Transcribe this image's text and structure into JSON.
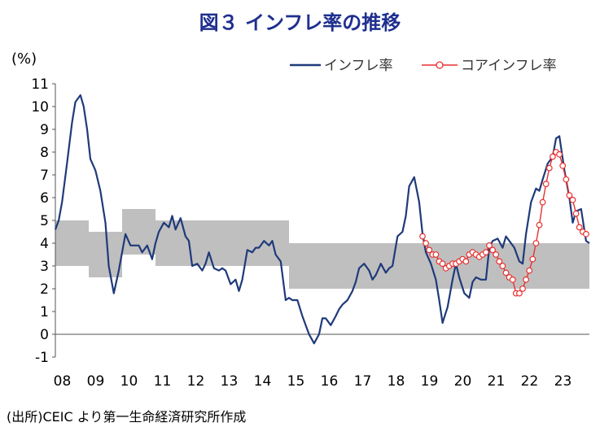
{
  "title": "図３ インフレ率の推移",
  "unit": "(%)",
  "source": "(出所)CEIC より第一生命経済研究所作成",
  "colors": {
    "inflation": "#1f3a7a",
    "core": "#e8312f",
    "band": "#bfbfbf"
  },
  "chart_data": {
    "type": "line",
    "title": "図３ インフレ率の推移",
    "ylabel": "(%)",
    "ylim": [
      -1,
      11
    ],
    "yticks": [
      "11",
      "10",
      "9",
      "8",
      "7",
      "6",
      "5",
      "4",
      "3",
      "2",
      "1",
      "0",
      "-1"
    ],
    "xlim": [
      2008,
      2024
    ],
    "xticks": [
      "08",
      "09",
      "10",
      "11",
      "12",
      "13",
      "14",
      "15",
      "16",
      "17",
      "18",
      "19",
      "20",
      "21",
      "22",
      "23"
    ],
    "legend": {
      "position": "top-right",
      "entries": [
        "インフレ率",
        "コアインフレ率"
      ]
    },
    "target_band": [
      {
        "x": 2008.0,
        "low": 3.0,
        "high": 5.0
      },
      {
        "x": 2009.0,
        "low": 3.0,
        "high": 5.0
      },
      {
        "x": 2009.0,
        "low": 2.5,
        "high": 4.5
      },
      {
        "x": 2010.0,
        "low": 2.5,
        "high": 4.5
      },
      {
        "x": 2010.0,
        "low": 3.5,
        "high": 5.5
      },
      {
        "x": 2011.0,
        "low": 3.5,
        "high": 5.5
      },
      {
        "x": 2011.0,
        "low": 3.0,
        "high": 5.0
      },
      {
        "x": 2015.0,
        "low": 3.0,
        "high": 5.0
      },
      {
        "x": 2015.0,
        "low": 2.0,
        "high": 4.0
      },
      {
        "x": 2024.0,
        "low": 2.0,
        "high": 4.0
      }
    ],
    "series": [
      {
        "name": "インフレ率",
        "style": "line",
        "x": [
          2008.0,
          2008.1,
          2008.2,
          2008.35,
          2008.5,
          2008.6,
          2008.75,
          2008.85,
          2008.95,
          2009.05,
          2009.2,
          2009.35,
          2009.5,
          2009.6,
          2009.75,
          2009.9,
          2010.0,
          2010.1,
          2010.25,
          2010.4,
          2010.5,
          2010.6,
          2010.75,
          2010.9,
          2011.0,
          2011.1,
          2011.25,
          2011.4,
          2011.5,
          2011.6,
          2011.75,
          2011.9,
          2012.0,
          2012.1,
          2012.25,
          2012.4,
          2012.5,
          2012.6,
          2012.75,
          2012.9,
          2013.0,
          2013.1,
          2013.25,
          2013.4,
          2013.5,
          2013.6,
          2013.75,
          2013.9,
          2014.0,
          2014.1,
          2014.25,
          2014.4,
          2014.5,
          2014.6,
          2014.75,
          2014.9,
          2015.0,
          2015.1,
          2015.25,
          2015.4,
          2015.5,
          2015.6,
          2015.75,
          2015.9,
          2016.0,
          2016.1,
          2016.25,
          2016.4,
          2016.5,
          2016.6,
          2016.75,
          2016.9,
          2017.0,
          2017.1,
          2017.25,
          2017.4,
          2017.5,
          2017.6,
          2017.75,
          2017.9,
          2018.0,
          2018.1,
          2018.25,
          2018.4,
          2018.5,
          2018.6,
          2018.75,
          2018.9,
          2019.0,
          2019.1,
          2019.25,
          2019.4,
          2019.5,
          2019.6,
          2019.75,
          2019.9,
          2020.0,
          2020.1,
          2020.25,
          2020.4,
          2020.5,
          2020.6,
          2020.75,
          2020.9,
          2021.0,
          2021.1,
          2021.25,
          2021.4,
          2021.5,
          2021.6,
          2021.75,
          2021.9,
          2022.0,
          2022.1,
          2022.25,
          2022.4,
          2022.5,
          2022.6,
          2022.75,
          2022.9,
          2023.0,
          2023.1,
          2023.25,
          2023.4,
          2023.5,
          2023.6,
          2023.75,
          2023.9,
          2024.0
        ],
        "values": [
          4.6,
          5.0,
          5.8,
          7.5,
          9.3,
          10.2,
          10.5,
          10.0,
          9.0,
          7.7,
          7.2,
          6.3,
          4.9,
          3.0,
          1.8,
          2.8,
          3.6,
          4.4,
          3.9,
          3.9,
          3.9,
          3.6,
          3.9,
          3.3,
          4.0,
          4.5,
          4.9,
          4.7,
          5.2,
          4.6,
          5.1,
          4.3,
          4.1,
          3.0,
          3.1,
          2.8,
          3.1,
          3.6,
          2.9,
          2.8,
          2.9,
          2.8,
          2.2,
          2.4,
          1.9,
          2.4,
          3.7,
          3.6,
          3.8,
          3.8,
          4.1,
          3.9,
          4.1,
          3.5,
          3.2,
          1.5,
          1.6,
          1.5,
          1.5,
          0.8,
          0.4,
          0.0,
          -0.4,
          0.0,
          0.7,
          0.7,
          0.4,
          0.8,
          1.1,
          1.3,
          1.5,
          1.9,
          2.3,
          2.9,
          3.1,
          2.8,
          2.4,
          2.6,
          3.1,
          2.7,
          2.9,
          3.0,
          4.3,
          4.5,
          5.2,
          6.5,
          6.9,
          5.8,
          4.4,
          3.6,
          3.1,
          2.4,
          1.5,
          0.5,
          1.2,
          2.4,
          3.1,
          2.5,
          1.8,
          1.6,
          2.3,
          2.5,
          2.4,
          2.4,
          3.8,
          4.1,
          4.2,
          3.8,
          4.3,
          4.1,
          3.8,
          3.2,
          3.1,
          4.4,
          5.8,
          6.4,
          6.3,
          6.8,
          7.5,
          7.8,
          8.6,
          8.7,
          7.2,
          6.0,
          4.9,
          5.4,
          5.5,
          4.1,
          4.0
        ]
      },
      {
        "name": "コアインフレ率",
        "style": "line-with-markers",
        "x": [
          2019.0,
          2019.1,
          2019.2,
          2019.3,
          2019.4,
          2019.5,
          2019.6,
          2019.7,
          2019.8,
          2019.9,
          2020.0,
          2020.1,
          2020.2,
          2020.3,
          2020.4,
          2020.5,
          2020.6,
          2020.7,
          2020.8,
          2020.9,
          2021.0,
          2021.1,
          2021.2,
          2021.3,
          2021.4,
          2021.5,
          2021.6,
          2021.7,
          2021.8,
          2021.9,
          2022.0,
          2022.1,
          2022.2,
          2022.3,
          2022.4,
          2022.5,
          2022.6,
          2022.7,
          2022.8,
          2022.9,
          2023.0,
          2023.1,
          2023.2,
          2023.3,
          2023.4,
          2023.5,
          2023.6,
          2023.7,
          2023.8,
          2023.9
        ],
        "values": [
          4.3,
          4.0,
          3.7,
          3.5,
          3.5,
          3.2,
          3.1,
          2.9,
          3.0,
          3.1,
          3.1,
          3.2,
          3.3,
          3.2,
          3.5,
          3.6,
          3.5,
          3.4,
          3.5,
          3.6,
          3.9,
          3.7,
          3.5,
          3.2,
          3.0,
          2.7,
          2.5,
          2.4,
          1.8,
          1.8,
          2.0,
          2.4,
          2.8,
          3.3,
          4.0,
          4.8,
          5.8,
          6.6,
          7.3,
          7.8,
          8.0,
          7.9,
          7.4,
          6.8,
          6.1,
          5.9,
          5.3,
          4.7,
          4.5,
          4.4
        ]
      }
    ]
  }
}
